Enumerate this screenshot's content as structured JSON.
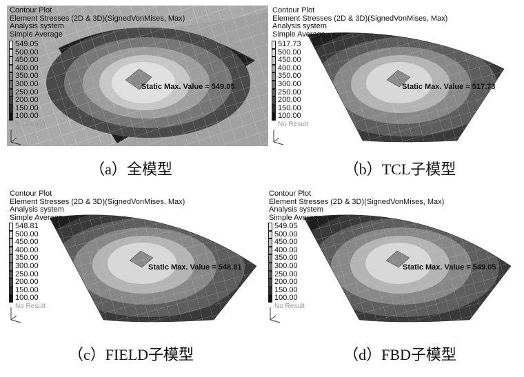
{
  "panels": [
    {
      "header": [
        "Contour Plot",
        "Element Stresses (2D & 3D)(SignedVonMises, Max)",
        "Analysis system",
        "Simple Average"
      ],
      "legend_values": [
        "549.05",
        "500.00",
        "450.00",
        "400.00",
        "350.00",
        "300.00",
        "250.00",
        "200.00",
        "150.00",
        "100.00"
      ],
      "no_result": "No Result",
      "max_label": "Static Max. Value =  549.05",
      "caption": "（a）全模型"
    },
    {
      "header": [
        "Contour Plot",
        "Element Stresses (2D & 3D)(SignedVonMises, Max)",
        "Analysis system",
        "Simple Average"
      ],
      "legend_values": [
        "517.73",
        "500.00",
        "450.00",
        "400.00",
        "350.00",
        "300.00",
        "250.00",
        "200.00",
        "150.00",
        "100.00"
      ],
      "no_result": "No Result",
      "max_label": "Static Max. Value =  517.73",
      "caption": "（b）TCL子模型"
    },
    {
      "header": [
        "Contour Plot",
        "Element Stresses (2D & 3D)(SignedVonMises, Max)",
        "Analysis system",
        "Simple Average"
      ],
      "legend_values": [
        "548.81",
        "500.00",
        "450.00",
        "400.00",
        "350.00",
        "300.00",
        "250.00",
        "200.00",
        "150.00",
        "100.00"
      ],
      "no_result": "No Result",
      "max_label": "Static Max. Value =  548.81",
      "caption": "（c）FIELD子模型"
    },
    {
      "header": [
        "Contour Plot",
        "Element Stresses (2D & 3D)(SignedVonMises, Max)",
        "Analysis system",
        "Simple Average"
      ],
      "legend_values": [
        "549.05",
        "500.00",
        "450.00",
        "400.00",
        "350.00",
        "300.00",
        "250.00",
        "200.00",
        "150.00",
        "100.00"
      ],
      "no_result": "No Result",
      "max_label": "Static Max. Value =  549.05",
      "caption": "（d）FBD子模型"
    }
  ],
  "colors": {
    "legend_swatches": [
      "#f2f2f2",
      "#dcdcdc",
      "#c4c4c4",
      "#aaaaaa",
      "#8f8f8f",
      "#777777",
      "#5e5e5e",
      "#474747",
      "#2e2e2e",
      "#141414"
    ],
    "model_background": "#a9a9a9",
    "mesh_line": "#d8d8d8"
  }
}
